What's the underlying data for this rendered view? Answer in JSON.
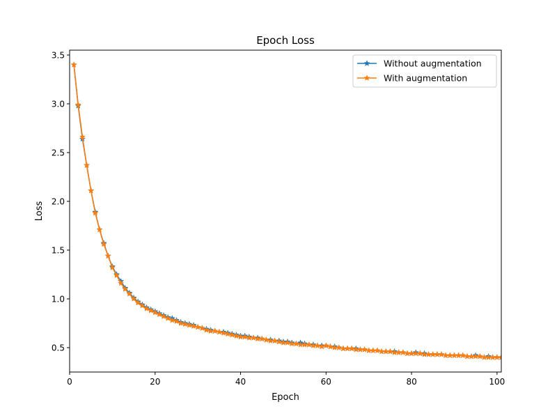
{
  "chart_data": {
    "type": "line",
    "title": "Epoch Loss",
    "xlabel": "Epoch",
    "ylabel": "Loss",
    "xlim": [
      0,
      101
    ],
    "ylim": [
      0.25,
      3.55
    ],
    "xticks": [
      0,
      20,
      40,
      60,
      80,
      100
    ],
    "yticks": [
      0.5,
      1.0,
      1.5,
      2.0,
      2.5,
      3.0,
      3.5
    ],
    "xtick_labels": [
      "0",
      "20",
      "40",
      "60",
      "80",
      "100"
    ],
    "ytick_labels": [
      "0.5",
      "1.0",
      "1.5",
      "2.0",
      "2.5",
      "3.0",
      "3.5"
    ],
    "grid": false,
    "legend_position": "top-right",
    "marker": "star",
    "x": [
      1,
      2,
      3,
      4,
      5,
      6,
      7,
      8,
      9,
      10,
      11,
      12,
      13,
      14,
      15,
      16,
      17,
      18,
      19,
      20,
      21,
      22,
      23,
      24,
      25,
      26,
      27,
      28,
      29,
      30,
      31,
      32,
      33,
      34,
      35,
      36,
      37,
      38,
      39,
      40,
      41,
      42,
      43,
      44,
      45,
      46,
      47,
      48,
      49,
      50,
      51,
      52,
      53,
      54,
      55,
      56,
      57,
      58,
      59,
      60,
      61,
      62,
      63,
      64,
      65,
      66,
      67,
      68,
      69,
      70,
      71,
      72,
      73,
      74,
      75,
      76,
      77,
      78,
      79,
      80,
      81,
      82,
      83,
      84,
      85,
      86,
      87,
      88,
      89,
      90,
      91,
      92,
      93,
      94,
      95,
      96,
      97,
      98,
      99,
      100,
      101
    ],
    "series": [
      {
        "name": "Without augmentation",
        "color": "#1f77b4",
        "values": [
          3.4,
          2.98,
          2.64,
          2.37,
          2.11,
          1.89,
          1.71,
          1.57,
          1.44,
          1.33,
          1.25,
          1.18,
          1.11,
          1.06,
          1.01,
          0.97,
          0.94,
          0.91,
          0.89,
          0.87,
          0.85,
          0.83,
          0.81,
          0.8,
          0.78,
          0.76,
          0.75,
          0.74,
          0.73,
          0.71,
          0.7,
          0.69,
          0.68,
          0.67,
          0.66,
          0.66,
          0.65,
          0.64,
          0.63,
          0.62,
          0.62,
          0.61,
          0.6,
          0.6,
          0.59,
          0.58,
          0.58,
          0.57,
          0.57,
          0.56,
          0.56,
          0.55,
          0.54,
          0.55,
          0.54,
          0.53,
          0.53,
          0.52,
          0.52,
          0.52,
          0.51,
          0.51,
          0.5,
          0.49,
          0.49,
          0.49,
          0.49,
          0.48,
          0.48,
          0.47,
          0.47,
          0.47,
          0.46,
          0.46,
          0.46,
          0.46,
          0.45,
          0.45,
          0.44,
          0.44,
          0.45,
          0.44,
          0.44,
          0.43,
          0.43,
          0.43,
          0.43,
          0.42,
          0.42,
          0.42,
          0.42,
          0.42,
          0.41,
          0.41,
          0.42,
          0.41,
          0.4,
          0.41,
          0.4,
          0.4,
          0.4
        ]
      },
      {
        "name": "With augmentation",
        "color": "#ff7f0e",
        "values": [
          3.4,
          2.99,
          2.66,
          2.37,
          2.11,
          1.88,
          1.71,
          1.56,
          1.44,
          1.32,
          1.24,
          1.16,
          1.1,
          1.05,
          1.0,
          0.96,
          0.93,
          0.9,
          0.88,
          0.86,
          0.84,
          0.82,
          0.8,
          0.78,
          0.77,
          0.75,
          0.74,
          0.73,
          0.72,
          0.71,
          0.7,
          0.68,
          0.67,
          0.67,
          0.66,
          0.65,
          0.64,
          0.63,
          0.62,
          0.61,
          0.61,
          0.6,
          0.6,
          0.59,
          0.59,
          0.58,
          0.57,
          0.57,
          0.56,
          0.55,
          0.55,
          0.54,
          0.54,
          0.53,
          0.53,
          0.53,
          0.52,
          0.52,
          0.51,
          0.52,
          0.51,
          0.5,
          0.5,
          0.49,
          0.49,
          0.49,
          0.48,
          0.48,
          0.48,
          0.47,
          0.47,
          0.47,
          0.46,
          0.46,
          0.46,
          0.45,
          0.45,
          0.45,
          0.44,
          0.44,
          0.44,
          0.44,
          0.43,
          0.43,
          0.43,
          0.43,
          0.43,
          0.42,
          0.42,
          0.42,
          0.42,
          0.42,
          0.41,
          0.41,
          0.41,
          0.41,
          0.4,
          0.4,
          0.4,
          0.4,
          0.4
        ]
      }
    ]
  }
}
